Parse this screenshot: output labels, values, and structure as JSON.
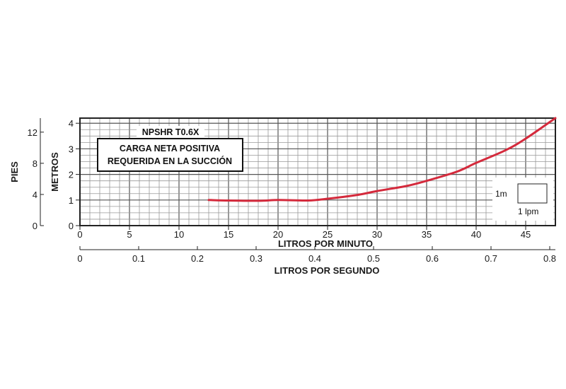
{
  "chart_data": {
    "type": "line",
    "series_label": "NPSHR T0.6X",
    "annotation_lines": [
      "CARGA NETA POSITIVA",
      "REQUERIDA EN LA SUCCIÓN"
    ],
    "x": [
      13,
      15,
      18,
      20,
      23,
      25,
      28,
      30,
      33,
      35,
      38,
      40,
      43,
      45,
      48
    ],
    "y": [
      1.0,
      0.98,
      0.97,
      1.0,
      0.98,
      1.05,
      1.2,
      1.35,
      1.55,
      1.75,
      2.1,
      2.45,
      2.95,
      3.4,
      4.2
    ],
    "line_color": "#d42a3c",
    "x_primary": {
      "label": "LITROS POR MINUTO",
      "range": [
        0,
        48
      ],
      "ticks": [
        "0",
        "5",
        "10",
        "15",
        "20",
        "25",
        "30",
        "35",
        "40",
        "45"
      ]
    },
    "x_secondary": {
      "label": "LITROS POR SEGUNDO",
      "range": [
        0,
        0.8
      ],
      "ticks": [
        "0",
        "0.1",
        "0.2",
        "0.3",
        "0.4",
        "0.5",
        "0.6",
        "0.7",
        "0.8"
      ]
    },
    "y_primary": {
      "label": "METROS",
      "range": [
        0,
        4.2
      ],
      "ticks": [
        "0",
        "1",
        "2",
        "3",
        "4"
      ]
    },
    "y_secondary": {
      "label": "PIES",
      "range": [
        0,
        13.8
      ],
      "ticks": [
        "0",
        "4",
        "8",
        "12"
      ]
    },
    "grid": true,
    "scale_legend": {
      "vertical": "1m",
      "horizontal": "1 lpm"
    }
  }
}
